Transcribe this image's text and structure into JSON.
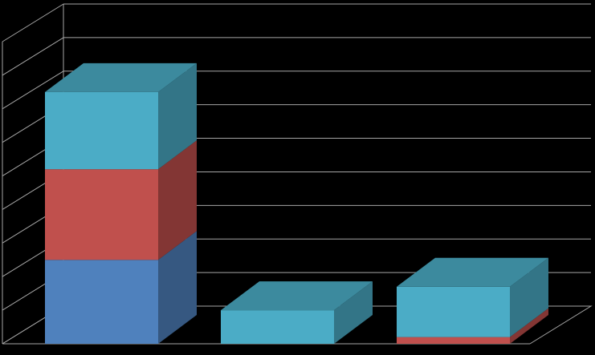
{
  "chart_data": {
    "type": "bar",
    "stacked": true,
    "three_d": true,
    "categories": [
      "",
      "",
      ""
    ],
    "series": [
      {
        "values": [
          2.5,
          0,
          0
        ],
        "color": "#4F81BD"
      },
      {
        "values": [
          2.7,
          0,
          0.2
        ],
        "color": "#C0504D"
      },
      {
        "values": [
          2.3,
          1.0,
          1.5
        ],
        "color": "#4BACC6"
      }
    ],
    "ylim": [
      0,
      9
    ],
    "grid": true,
    "legend": "none",
    "title": "",
    "xlabel": "",
    "ylabel": "",
    "background": "#000000",
    "grid_color": "#A6A6A6"
  }
}
